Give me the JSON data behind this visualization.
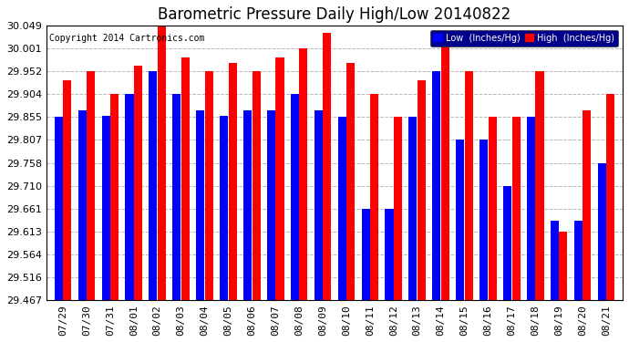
{
  "title": "Barometric Pressure Daily High/Low 20140822",
  "copyright": "Copyright 2014 Cartronics.com",
  "legend_low": "Low  (Inches/Hg)",
  "legend_high": "High  (Inches/Hg)",
  "dates": [
    "07/29",
    "07/30",
    "07/31",
    "08/01",
    "08/02",
    "08/03",
    "08/04",
    "08/05",
    "08/06",
    "08/07",
    "08/08",
    "08/09",
    "08/10",
    "08/11",
    "08/12",
    "08/13",
    "08/14",
    "08/15",
    "08/16",
    "08/17",
    "08/18",
    "08/19",
    "08/20",
    "08/21"
  ],
  "low_values": [
    29.855,
    29.869,
    29.858,
    29.904,
    29.952,
    29.904,
    29.869,
    29.858,
    29.869,
    29.869,
    29.904,
    29.869,
    29.855,
    29.66,
    29.66,
    29.855,
    29.952,
    29.807,
    29.807,
    29.71,
    29.855,
    29.635,
    29.635,
    29.758
  ],
  "high_values": [
    29.933,
    29.952,
    29.904,
    29.964,
    30.048,
    29.981,
    29.952,
    29.969,
    29.952,
    29.981,
    30.001,
    30.033,
    29.969,
    29.904,
    29.855,
    29.933,
    30.033,
    29.952,
    29.855,
    29.855,
    29.952,
    29.613,
    29.869,
    29.904
  ],
  "ylim_low": 29.467,
  "ylim_high": 30.049,
  "yticks": [
    29.467,
    29.516,
    29.564,
    29.613,
    29.661,
    29.71,
    29.758,
    29.807,
    29.855,
    29.904,
    29.952,
    30.001,
    30.049
  ],
  "bar_color_low": "#0000ff",
  "bar_color_high": "#ff0000",
  "bg_color": "#ffffff",
  "grid_color": "#b0b0b0",
  "title_fontsize": 12,
  "tick_fontsize": 8,
  "copyright_fontsize": 7
}
